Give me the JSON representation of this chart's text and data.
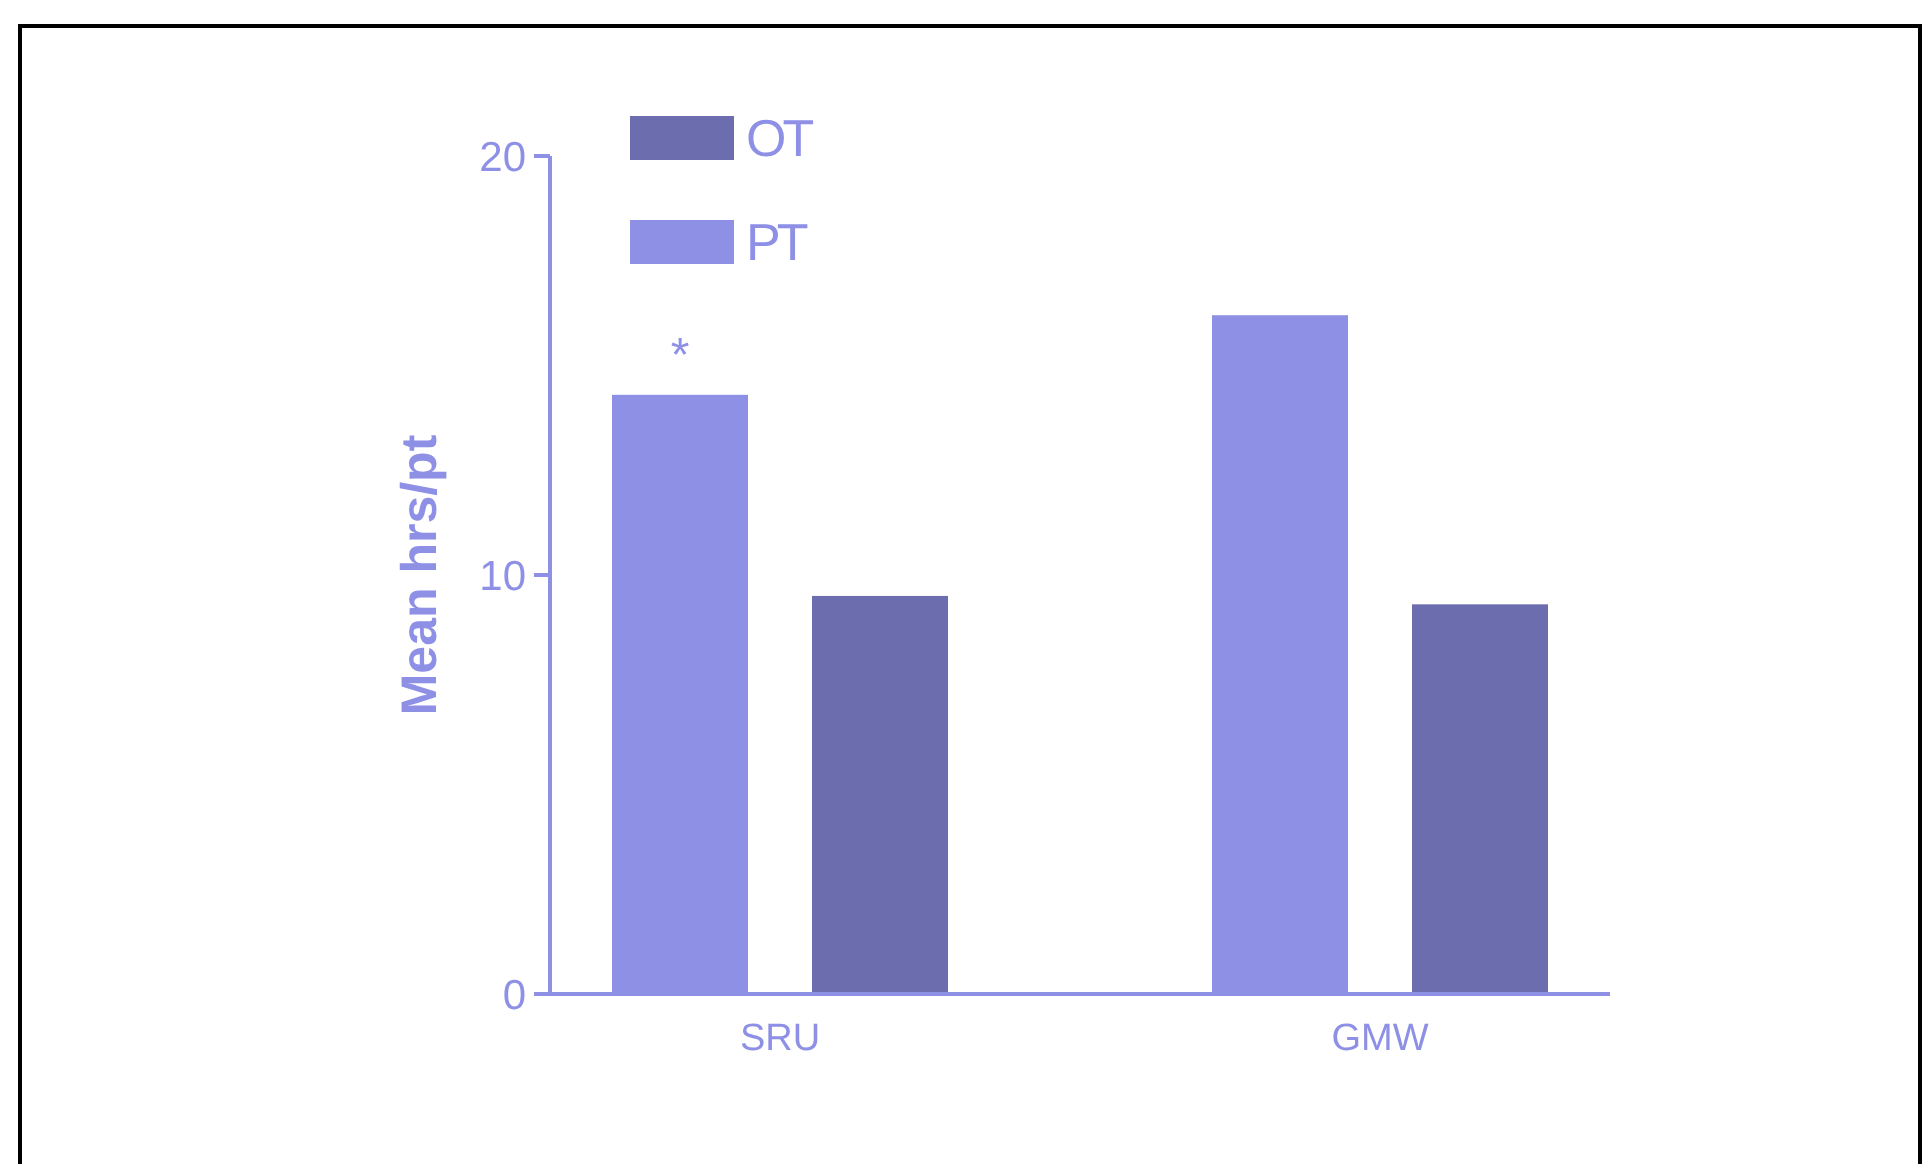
{
  "chart_data": {
    "type": "bar",
    "ylabel": "Mean hrs/pt",
    "categories": [
      "SRU",
      "GMW"
    ],
    "series": [
      {
        "name": "PT",
        "color": "#8e90e6",
        "values": [
          14.3,
          16.2
        ]
      },
      {
        "name": "OT",
        "color": "#6c6daf",
        "values": [
          9.5,
          9.3
        ]
      }
    ],
    "ylim": [
      0,
      20
    ],
    "yticks": [
      0,
      10,
      20
    ],
    "legend": "top left",
    "grid": false,
    "annotations": [
      "*"
    ]
  }
}
